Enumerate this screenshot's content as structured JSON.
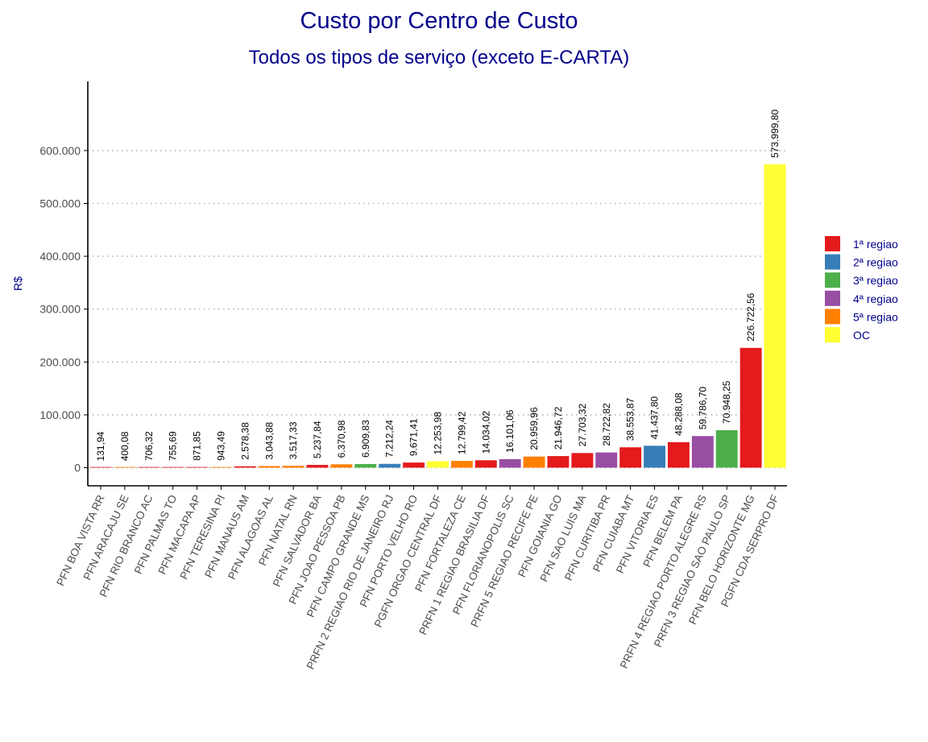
{
  "chart_data": {
    "type": "bar",
    "title": "Custo por Centro de Custo",
    "subtitle": "Todos os tipos de serviço (exceto E-CARTA)",
    "xlabel": "",
    "ylabel": "R$",
    "ylim": [
      0,
      700000
    ],
    "yticks": [
      0,
      100000,
      200000,
      300000,
      400000,
      500000,
      600000
    ],
    "ytick_labels": [
      "0",
      "100.000",
      "200.000",
      "300.000",
      "400.000",
      "500.000",
      "600.000"
    ],
    "grid": "horizontal dotted",
    "legend_position": "right",
    "legend": [
      {
        "name": "1ª regiao",
        "color": "#E41A1C"
      },
      {
        "name": "2ª regiao",
        "color": "#377EB8"
      },
      {
        "name": "3ª regiao",
        "color": "#4DAF4A"
      },
      {
        "name": "4ª regiao",
        "color": "#984EA3"
      },
      {
        "name": "5ª regiao",
        "color": "#FF7F00"
      },
      {
        "name": "OC",
        "color": "#FFFF33"
      }
    ],
    "categories": [
      "PFN BOA VISTA RR",
      "PFN ARACAJU SE",
      "PFN RIO BRANCO AC",
      "PFN PALMAS TO",
      "PFN MACAPA AP",
      "PFN TERESINA PI",
      "PFN MANAUS AM",
      "PFN ALAGOAS AL",
      "PFN NATAL RN",
      "PFN SALVADOR BA",
      "PFN JOAO PESSOA PB",
      "PFN CAMPO GRANDE MS",
      "PRFN 2 REGIAO RIO DE JANEIRO RJ",
      "PFN PORTO VELHO RO",
      "PGFN ORGAO CENTRAL DF",
      "PFN FORTALEZA CE",
      "PRFN 1 REGIAO BRASILIA DF",
      "PFN FLORIANOPOLIS SC",
      "PRFN 5 REGIAO RECIFE PE",
      "PFN GOIANIA GO",
      "PFN SAO LUIS MA",
      "PFN CURITIBA PR",
      "PFN CUIABA MT",
      "PFN VITORIA ES",
      "PFN BELEM PA",
      "PRFN 4 REGIAO PORTO ALEGRE RS",
      "PRFN 3 REGIAO SAO PAULO SP",
      "PFN BELO HORIZONTE MG",
      "PGFN CDA SERPRO DF"
    ],
    "values": [
      131.94,
      400.08,
      706.32,
      755.69,
      871.85,
      943.49,
      2578.38,
      3043.88,
      3517.33,
      5237.84,
      6370.98,
      6909.83,
      7212.24,
      9671.41,
      12253.98,
      12799.42,
      14034.02,
      16101.06,
      20959.96,
      21946.72,
      27703.32,
      28722.82,
      38553.87,
      41437.8,
      48288.08,
      59786.7,
      70948.25,
      226722.56,
      573999.8
    ],
    "data_labels": [
      "131,94",
      "400,08",
      "706,32",
      "755,69",
      "871,85",
      "943,49",
      "2.578,38",
      "3.043,88",
      "3.517,33",
      "5.237,84",
      "6.370,98",
      "6.909,83",
      "7.212,24",
      "9.671,41",
      "12.253,98",
      "12.799,42",
      "14.034,02",
      "16.101,06",
      "20.959,96",
      "21.946,72",
      "27.703,32",
      "28.722,82",
      "38.553,87",
      "41.437,80",
      "48.288,08",
      "59.786,70",
      "70.948,25",
      "226.722,56",
      "573.999,80"
    ],
    "regions": [
      "1ª regiao",
      "5ª regiao",
      "1ª regiao",
      "1ª regiao",
      "1ª regiao",
      "5ª regiao",
      "1ª regiao",
      "5ª regiao",
      "5ª regiao",
      "1ª regiao",
      "5ª regiao",
      "3ª regiao",
      "2ª regiao",
      "1ª regiao",
      "OC",
      "5ª regiao",
      "1ª regiao",
      "4ª regiao",
      "5ª regiao",
      "1ª regiao",
      "1ª regiao",
      "4ª regiao",
      "1ª regiao",
      "2ª regiao",
      "1ª regiao",
      "4ª regiao",
      "3ª regiao",
      "1ª regiao",
      "OC"
    ]
  }
}
